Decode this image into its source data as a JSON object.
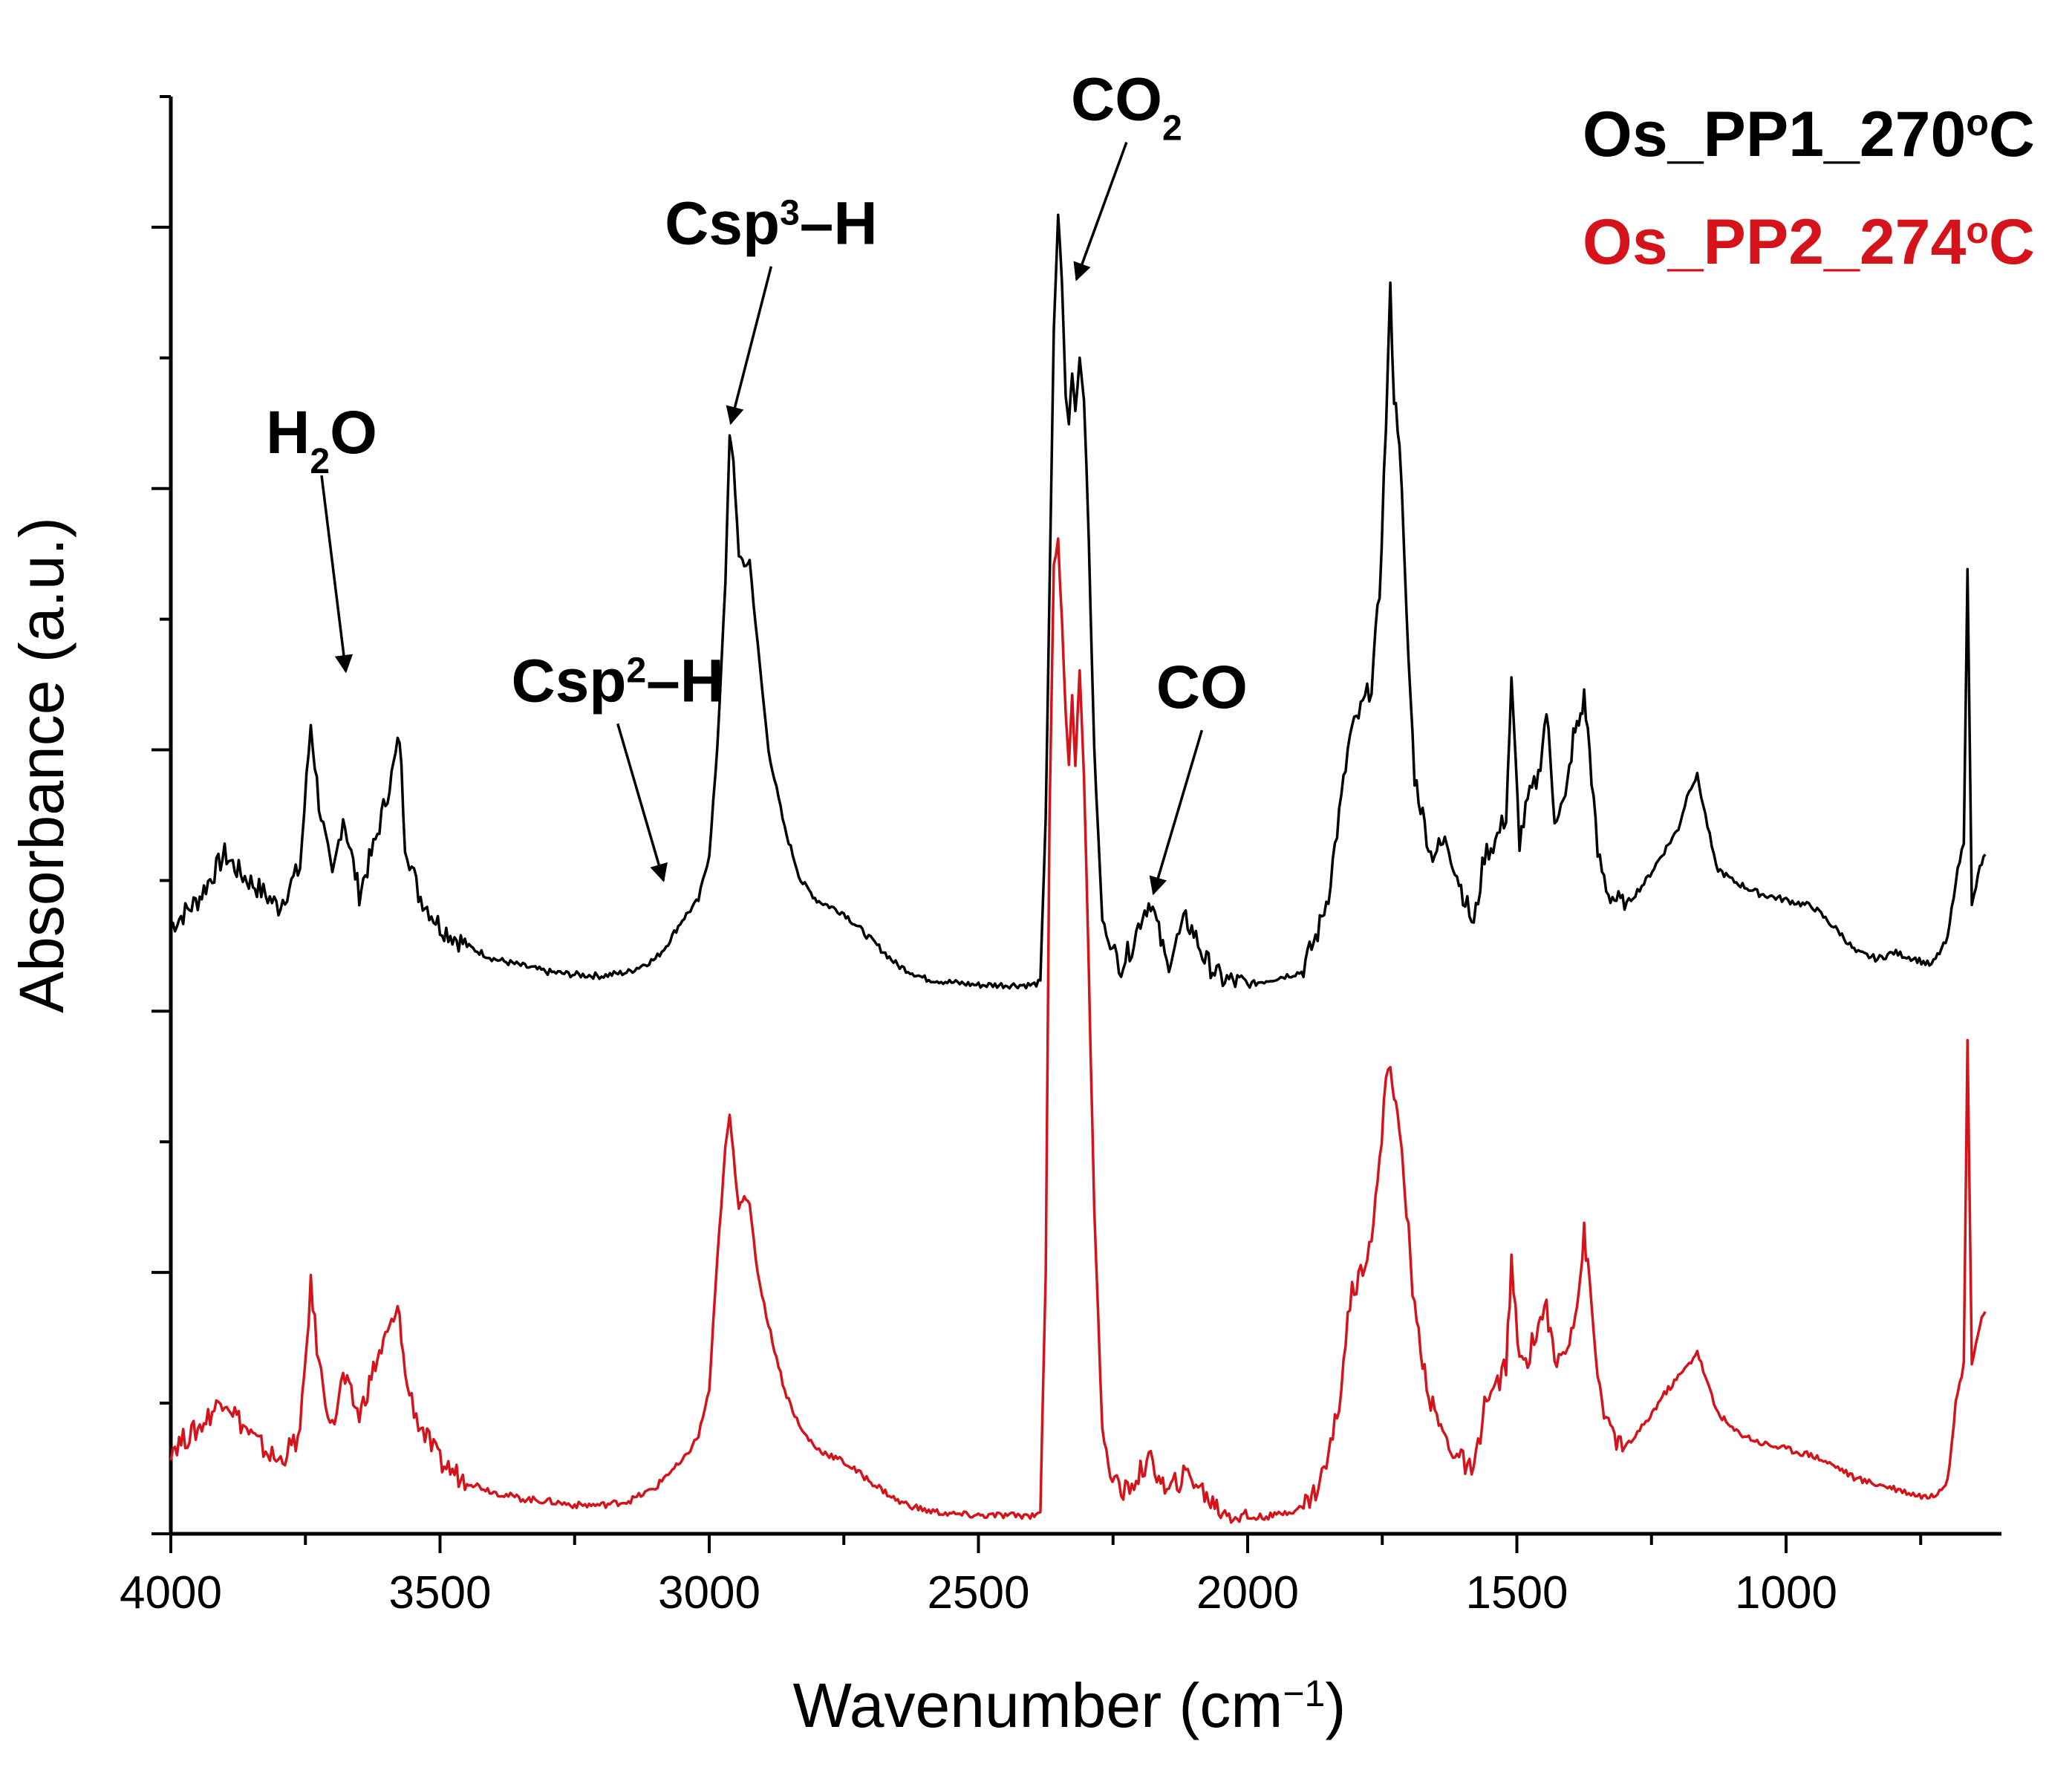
{
  "chart_data": {
    "type": "line",
    "title": "",
    "xlabel": {
      "main": "Wavenumber (cm",
      "sup": "−1",
      "close": ")"
    },
    "ylabel": "Absorbance (a.u.)",
    "xlim": [
      4000,
      600
    ],
    "x_reversed": true,
    "ylim": [
      0,
      11
    ],
    "x_ticks": [
      "4000",
      "3500",
      "3000",
      "2500",
      "2000",
      "1500",
      "1000"
    ],
    "x_tick_values": [
      4000,
      3500,
      3000,
      2500,
      2000,
      1500,
      1000
    ],
    "y_major_ticks": [
      0,
      2,
      4,
      6,
      8,
      10
    ],
    "y_tick_labels_shown": false,
    "grid": false,
    "legend_position": "top-right",
    "series": [
      {
        "name": "Os_PP1_270°C",
        "name_main": "Os_PP1_270",
        "name_deg": "o",
        "name_unit": "C",
        "color": "#000000",
        "points": [
          [
            4000,
            4.65
          ],
          [
            3950,
            4.85
          ],
          [
            3900,
            5.2
          ],
          [
            3870,
            5.05
          ],
          [
            3840,
            4.95
          ],
          [
            3800,
            4.8
          ],
          [
            3760,
            5.1
          ],
          [
            3740,
            6.2
          ],
          [
            3725,
            5.6
          ],
          [
            3700,
            5.0
          ],
          [
            3680,
            5.5
          ],
          [
            3650,
            4.9
          ],
          [
            3620,
            5.3
          ],
          [
            3590,
            5.8
          ],
          [
            3575,
            6.1
          ],
          [
            3565,
            5.3
          ],
          [
            3540,
            4.9
          ],
          [
            3500,
            4.65
          ],
          [
            3450,
            4.5
          ],
          [
            3400,
            4.4
          ],
          [
            3350,
            4.35
          ],
          [
            3300,
            4.3
          ],
          [
            3250,
            4.28
          ],
          [
            3200,
            4.27
          ],
          [
            3150,
            4.3
          ],
          [
            3100,
            4.4
          ],
          [
            3080,
            4.5
          ],
          [
            3050,
            4.7
          ],
          [
            3020,
            4.85
          ],
          [
            3000,
            5.2
          ],
          [
            2985,
            6.0
          ],
          [
            2970,
            7.3
          ],
          [
            2962,
            8.4
          ],
          [
            2955,
            8.2
          ],
          [
            2945,
            7.5
          ],
          [
            2935,
            7.4
          ],
          [
            2925,
            7.45
          ],
          [
            2910,
            6.8
          ],
          [
            2890,
            6.0
          ],
          [
            2860,
            5.4
          ],
          [
            2830,
            5.0
          ],
          [
            2800,
            4.85
          ],
          [
            2750,
            4.75
          ],
          [
            2700,
            4.55
          ],
          [
            2650,
            4.35
          ],
          [
            2600,
            4.25
          ],
          [
            2550,
            4.22
          ],
          [
            2500,
            4.2
          ],
          [
            2450,
            4.2
          ],
          [
            2400,
            4.2
          ],
          [
            2385,
            4.22
          ],
          [
            2375,
            5.5
          ],
          [
            2368,
            7.2
          ],
          [
            2360,
            9.2
          ],
          [
            2352,
            10.1
          ],
          [
            2345,
            9.6
          ],
          [
            2338,
            8.7
          ],
          [
            2332,
            8.5
          ],
          [
            2326,
            8.9
          ],
          [
            2320,
            8.6
          ],
          [
            2312,
            9.0
          ],
          [
            2304,
            8.7
          ],
          [
            2295,
            7.6
          ],
          [
            2285,
            6.0
          ],
          [
            2270,
            4.7
          ],
          [
            2255,
            4.5
          ],
          [
            2235,
            4.35
          ],
          [
            2215,
            4.5
          ],
          [
            2195,
            4.75
          ],
          [
            2180,
            4.85
          ],
          [
            2165,
            4.6
          ],
          [
            2150,
            4.35
          ],
          [
            2135,
            4.5
          ],
          [
            2115,
            4.7
          ],
          [
            2100,
            4.6
          ],
          [
            2080,
            4.4
          ],
          [
            2050,
            4.25
          ],
          [
            2000,
            4.2
          ],
          [
            1950,
            4.25
          ],
          [
            1900,
            4.3
          ],
          [
            1870,
            4.6
          ],
          [
            1850,
            4.9
          ],
          [
            1830,
            5.5
          ],
          [
            1810,
            6.1
          ],
          [
            1790,
            6.3
          ],
          [
            1770,
            6.5
          ],
          [
            1755,
            7.2
          ],
          [
            1743,
            8.5
          ],
          [
            1735,
            9.5
          ],
          [
            1728,
            8.7
          ],
          [
            1718,
            8.4
          ],
          [
            1705,
            7.0
          ],
          [
            1690,
            5.8
          ],
          [
            1660,
            5.2
          ],
          [
            1630,
            5.3
          ],
          [
            1600,
            4.9
          ],
          [
            1580,
            4.65
          ],
          [
            1560,
            5.2
          ],
          [
            1540,
            5.3
          ],
          [
            1520,
            5.5
          ],
          [
            1510,
            6.5
          ],
          [
            1495,
            5.3
          ],
          [
            1480,
            5.6
          ],
          [
            1460,
            5.8
          ],
          [
            1445,
            6.3
          ],
          [
            1430,
            5.5
          ],
          [
            1410,
            5.6
          ],
          [
            1395,
            6.1
          ],
          [
            1385,
            6.2
          ],
          [
            1375,
            6.4
          ],
          [
            1365,
            6.0
          ],
          [
            1350,
            5.2
          ],
          [
            1330,
            4.9
          ],
          [
            1300,
            4.8
          ],
          [
            1260,
            5.0
          ],
          [
            1230,
            5.2
          ],
          [
            1200,
            5.4
          ],
          [
            1180,
            5.7
          ],
          [
            1165,
            5.8
          ],
          [
            1150,
            5.5
          ],
          [
            1130,
            5.1
          ],
          [
            1100,
            5.0
          ],
          [
            1050,
            4.9
          ],
          [
            1000,
            4.85
          ],
          [
            950,
            4.8
          ],
          [
            900,
            4.6
          ],
          [
            870,
            4.45
          ],
          [
            830,
            4.4
          ],
          [
            800,
            4.45
          ],
          [
            760,
            4.4
          ],
          [
            730,
            4.35
          ],
          [
            700,
            4.55
          ],
          [
            685,
            5.0
          ],
          [
            670,
            5.3
          ],
          [
            663,
            7.4
          ],
          [
            655,
            4.8
          ],
          [
            640,
            5.1
          ],
          [
            630,
            5.2
          ]
        ]
      },
      {
        "name": "Os_PP2_274°C",
        "name_main": "Os_PP2_274",
        "name_deg": "o",
        "name_unit": "C",
        "color": "#d4141a",
        "points": [
          [
            4000,
            0.65
          ],
          [
            3950,
            0.8
          ],
          [
            3900,
            1.05
          ],
          [
            3870,
            0.85
          ],
          [
            3840,
            0.7
          ],
          [
            3800,
            0.55
          ],
          [
            3760,
            0.75
          ],
          [
            3740,
            1.9
          ],
          [
            3725,
            1.3
          ],
          [
            3700,
            0.8
          ],
          [
            3680,
            1.2
          ],
          [
            3650,
            0.9
          ],
          [
            3620,
            1.3
          ],
          [
            3590,
            1.6
          ],
          [
            3575,
            1.7
          ],
          [
            3565,
            1.2
          ],
          [
            3540,
            0.85
          ],
          [
            3500,
            0.55
          ],
          [
            3450,
            0.4
          ],
          [
            3400,
            0.32
          ],
          [
            3350,
            0.27
          ],
          [
            3300,
            0.25
          ],
          [
            3250,
            0.22
          ],
          [
            3200,
            0.22
          ],
          [
            3150,
            0.25
          ],
          [
            3100,
            0.35
          ],
          [
            3080,
            0.45
          ],
          [
            3050,
            0.55
          ],
          [
            3020,
            0.75
          ],
          [
            3000,
            1.1
          ],
          [
            2985,
            2.1
          ],
          [
            2970,
            2.95
          ],
          [
            2962,
            3.2
          ],
          [
            2955,
            2.9
          ],
          [
            2945,
            2.5
          ],
          [
            2935,
            2.6
          ],
          [
            2925,
            2.5
          ],
          [
            2910,
            2.0
          ],
          [
            2890,
            1.6
          ],
          [
            2860,
            1.1
          ],
          [
            2830,
            0.8
          ],
          [
            2800,
            0.65
          ],
          [
            2750,
            0.55
          ],
          [
            2700,
            0.4
          ],
          [
            2650,
            0.25
          ],
          [
            2600,
            0.18
          ],
          [
            2550,
            0.15
          ],
          [
            2500,
            0.14
          ],
          [
            2450,
            0.14
          ],
          [
            2400,
            0.14
          ],
          [
            2385,
            0.18
          ],
          [
            2375,
            2.0
          ],
          [
            2368,
            5.5
          ],
          [
            2360,
            7.4
          ],
          [
            2352,
            7.6
          ],
          [
            2345,
            7.0
          ],
          [
            2338,
            6.3
          ],
          [
            2332,
            5.9
          ],
          [
            2326,
            6.4
          ],
          [
            2320,
            5.9
          ],
          [
            2312,
            6.6
          ],
          [
            2304,
            5.8
          ],
          [
            2295,
            4.3
          ],
          [
            2285,
            2.5
          ],
          [
            2270,
            0.8
          ],
          [
            2255,
            0.45
          ],
          [
            2235,
            0.3
          ],
          [
            2215,
            0.38
          ],
          [
            2195,
            0.5
          ],
          [
            2180,
            0.55
          ],
          [
            2165,
            0.45
          ],
          [
            2150,
            0.3
          ],
          [
            2135,
            0.38
          ],
          [
            2115,
            0.45
          ],
          [
            2100,
            0.42
          ],
          [
            2080,
            0.3
          ],
          [
            2050,
            0.18
          ],
          [
            2000,
            0.12
          ],
          [
            1950,
            0.14
          ],
          [
            1900,
            0.2
          ],
          [
            1870,
            0.35
          ],
          [
            1850,
            0.6
          ],
          [
            1830,
            1.0
          ],
          [
            1810,
            1.8
          ],
          [
            1790,
            2.0
          ],
          [
            1770,
            2.3
          ],
          [
            1755,
            2.8
          ],
          [
            1743,
            3.5
          ],
          [
            1735,
            3.65
          ],
          [
            1728,
            3.3
          ],
          [
            1718,
            3.1
          ],
          [
            1705,
            2.5
          ],
          [
            1690,
            1.7
          ],
          [
            1660,
            1.0
          ],
          [
            1630,
            0.7
          ],
          [
            1600,
            0.55
          ],
          [
            1580,
            0.45
          ],
          [
            1560,
            1.0
          ],
          [
            1540,
            1.1
          ],
          [
            1520,
            1.3
          ],
          [
            1510,
            2.05
          ],
          [
            1495,
            1.3
          ],
          [
            1480,
            1.35
          ],
          [
            1460,
            1.6
          ],
          [
            1445,
            1.75
          ],
          [
            1430,
            1.3
          ],
          [
            1410,
            1.4
          ],
          [
            1395,
            1.65
          ],
          [
            1385,
            1.85
          ],
          [
            1375,
            2.3
          ],
          [
            1365,
            1.9
          ],
          [
            1350,
            1.2
          ],
          [
            1330,
            0.8
          ],
          [
            1300,
            0.65
          ],
          [
            1260,
            0.85
          ],
          [
            1230,
            1.05
          ],
          [
            1200,
            1.2
          ],
          [
            1180,
            1.3
          ],
          [
            1165,
            1.4
          ],
          [
            1150,
            1.2
          ],
          [
            1130,
            0.95
          ],
          [
            1100,
            0.8
          ],
          [
            1050,
            0.7
          ],
          [
            1000,
            0.65
          ],
          [
            950,
            0.6
          ],
          [
            900,
            0.5
          ],
          [
            870,
            0.42
          ],
          [
            830,
            0.38
          ],
          [
            800,
            0.35
          ],
          [
            760,
            0.3
          ],
          [
            730,
            0.28
          ],
          [
            700,
            0.4
          ],
          [
            685,
            1.0
          ],
          [
            670,
            1.3
          ],
          [
            663,
            3.8
          ],
          [
            655,
            1.3
          ],
          [
            640,
            1.6
          ],
          [
            630,
            1.7
          ]
        ]
      }
    ],
    "annotations": [
      {
        "id": "h2o",
        "main": "H",
        "sub": "2",
        "rest": "O",
        "arrow_from": [
          3720,
          8.1
        ],
        "arrow_to": [
          3675,
          6.6
        ]
      },
      {
        "id": "csp2",
        "main": "Csp",
        "sup": "2",
        "rest": "–H",
        "arrow_from": [
          3170,
          6.2
        ],
        "arrow_to": [
          3085,
          5.0
        ]
      },
      {
        "id": "csp3",
        "main": "Csp",
        "sup": "3",
        "rest": "–H",
        "arrow_from": [
          2885,
          9.7
        ],
        "arrow_to": [
          2960,
          8.5
        ]
      },
      {
        "id": "co2",
        "main": "CO",
        "sub": "2",
        "rest": "",
        "arrow_from": [
          2225,
          10.65
        ],
        "arrow_to": [
          2318,
          9.6
        ]
      },
      {
        "id": "co",
        "main": "CO",
        "sub": "",
        "rest": "",
        "arrow_from": [
          2085,
          6.15
        ],
        "arrow_to": [
          2175,
          4.9
        ]
      }
    ]
  }
}
